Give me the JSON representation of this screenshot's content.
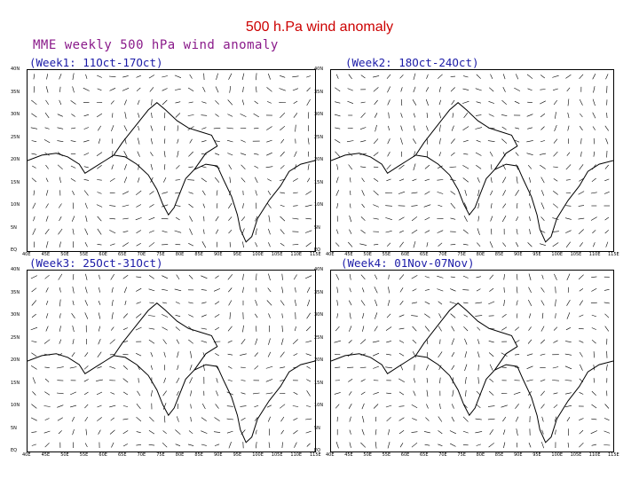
{
  "slide_title": "500 h.Pa wind anomaly",
  "figure_title": "MME weekly 500 hPa wind anomaly",
  "panels": [
    {
      "label": "(Week1: 11Oct-17Oct)"
    },
    {
      "label": "(Week2: 18Oct-24Oct)"
    },
    {
      "label": "(Week3: 25Oct-31Oct)"
    },
    {
      "label": "(Week4: 01Nov-07Nov)"
    }
  ],
  "y_ticks": [
    "40N",
    "35N",
    "30N",
    "25N",
    "20N",
    "15N",
    "10N",
    "5N",
    "EQ"
  ],
  "x_ticks": [
    "40E",
    "45E",
    "50E",
    "55E",
    "60E",
    "65E",
    "70E",
    "75E",
    "80E",
    "85E",
    "90E",
    "95E",
    "100E",
    "105E",
    "110E",
    "115E"
  ],
  "colors": {
    "slide_title": "#cc0000",
    "figure_title": "#8a1a8a",
    "panel_label": "#1c1ca8",
    "vectors": "#000000",
    "coastline": "#000000"
  }
}
